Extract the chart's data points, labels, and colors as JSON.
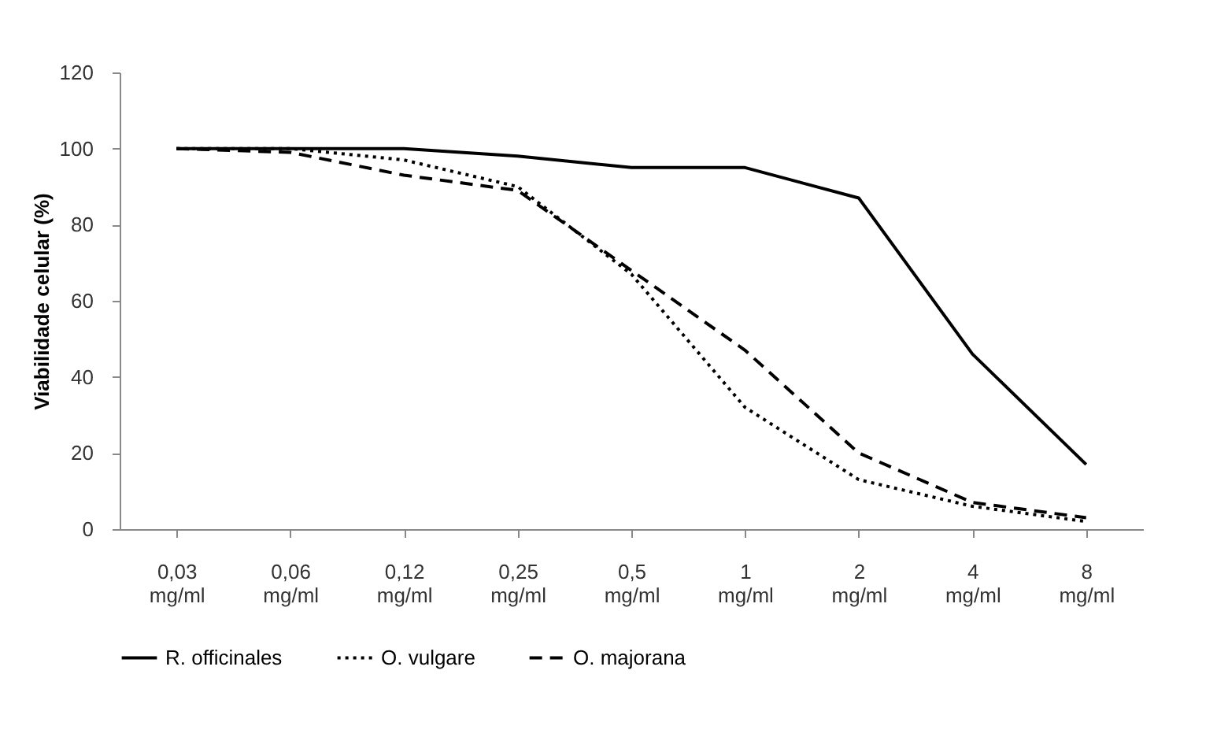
{
  "chart_data": {
    "type": "line",
    "ylabel": "Viabilidade celular (%)",
    "categories": [
      "0,03 mg/ml",
      "0,06 mg/ml",
      "0,12 mg/ml",
      "0,25 mg/ml",
      "0,5 mg/ml",
      "1 mg/ml",
      "2 mg/ml",
      "4 mg/ml",
      "8 mg/ml"
    ],
    "series": [
      {
        "name": "R. officinales",
        "color": "#000000",
        "line_style": "solid",
        "values": [
          100,
          100,
          100,
          98,
          95,
          95,
          87,
          46,
          17
        ]
      },
      {
        "name": "O. vulgare",
        "color": "#000000",
        "line_style": "dotted",
        "values": [
          100,
          100,
          97,
          90,
          67,
          32,
          13,
          6,
          2
        ]
      },
      {
        "name": "O. majorana",
        "color": "#000000",
        "line_style": "dashed",
        "values": [
          100,
          99,
          93,
          89,
          68,
          47,
          20,
          7,
          3
        ]
      }
    ],
    "ylim": [
      0,
      120
    ],
    "yticks": [
      0,
      20,
      40,
      60,
      80,
      100,
      120
    ],
    "grid": false,
    "legend": "bottom",
    "marker": "none"
  }
}
